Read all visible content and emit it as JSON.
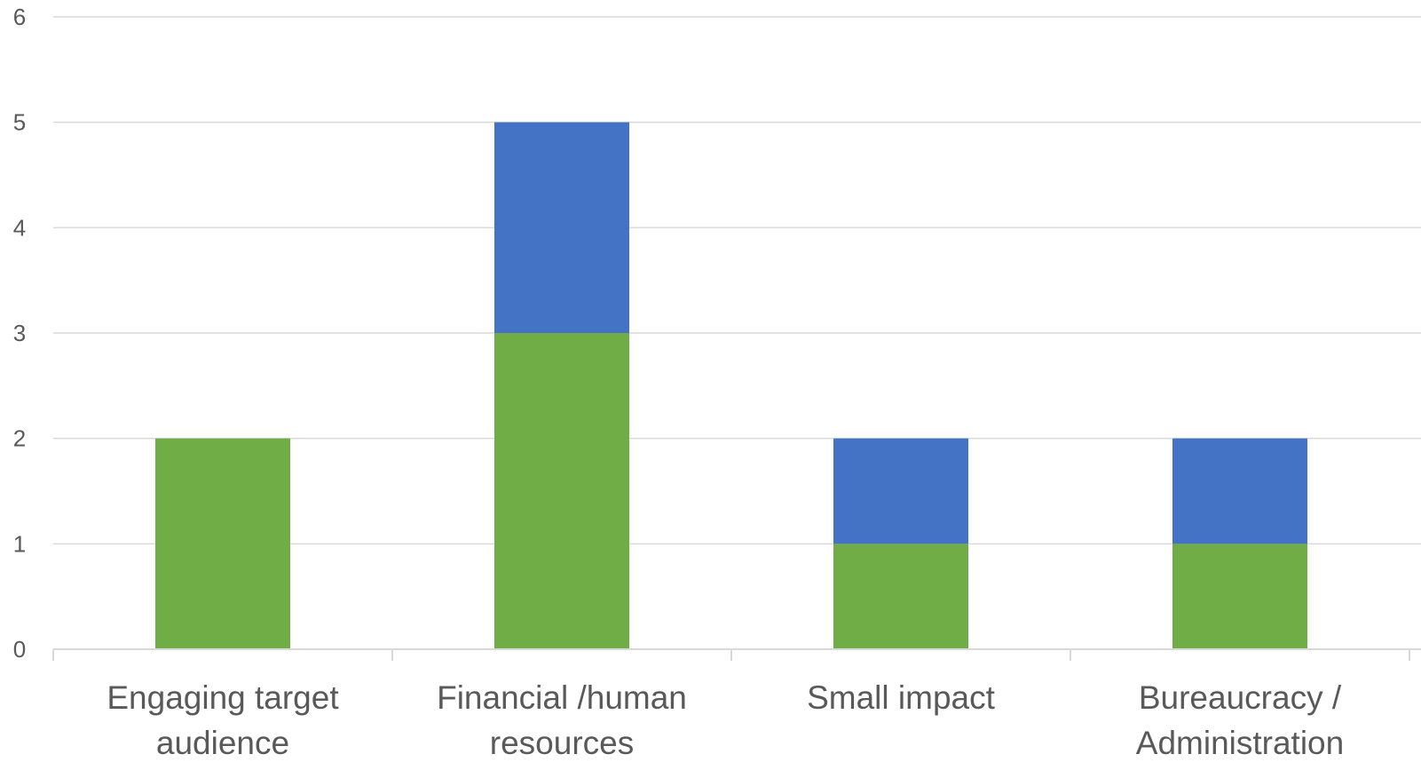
{
  "chart_data": {
    "type": "bar",
    "stacked": true,
    "title": "",
    "xlabel": "",
    "ylabel": "",
    "categories": [
      [
        "Engaging target",
        "audience"
      ],
      [
        "Financial /human",
        "resources"
      ],
      [
        "Small impact"
      ],
      [
        "Bureaucracy /",
        "Administration"
      ]
    ],
    "series": [
      {
        "color": "#70ad47",
        "values": [
          2,
          3,
          1,
          1
        ]
      },
      {
        "color": "#4472c4",
        "values": [
          0,
          2,
          1,
          1
        ]
      }
    ],
    "ylim": [
      0,
      6
    ],
    "yticks": [
      "0",
      "1",
      "2",
      "3",
      "4",
      "5",
      "6"
    ],
    "grid": true,
    "legend": "none"
  }
}
